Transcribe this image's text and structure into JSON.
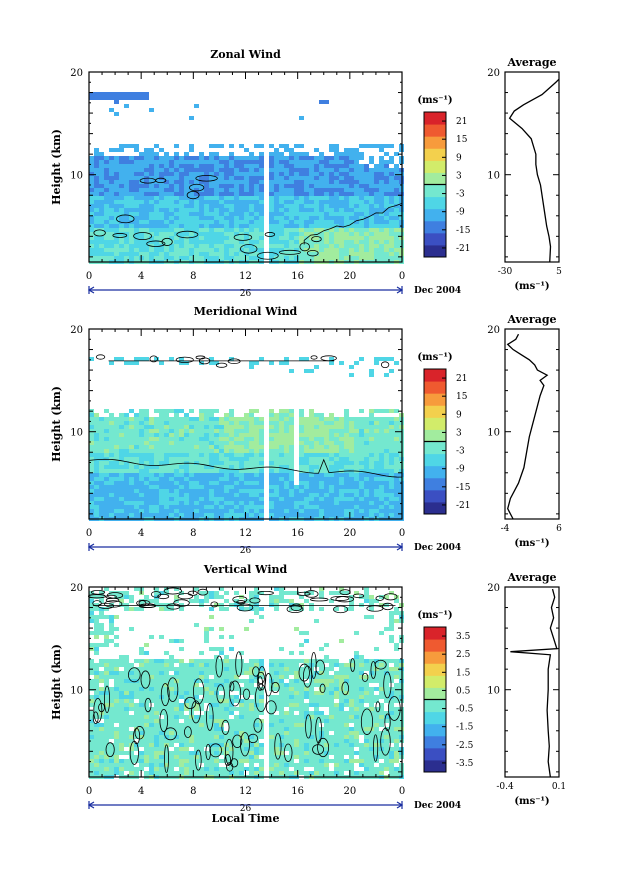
{
  "figure": {
    "date_label": "Dec 2004",
    "day_label": "26",
    "xlabel": "Local Time"
  },
  "colorscale": [
    "#2b2e8f",
    "#3b4fc2",
    "#3f7fe0",
    "#42b1ee",
    "#4fd6e6",
    "#74e8cf",
    "#a2ec9e",
    "#d2ec6a",
    "#f3d04d",
    "#f79b3c",
    "#ef5a30",
    "#d9232a"
  ],
  "chart_data": [
    {
      "type": "heatmap",
      "title": "Zonal Wind",
      "ylabel": "Height (km)",
      "xlim": [
        0,
        24
      ],
      "ylim": [
        1.5,
        20
      ],
      "x_ticks": [
        "0",
        "4",
        "8",
        "12",
        "16",
        "20",
        "0"
      ],
      "y_ticks": [
        "10",
        "20"
      ],
      "colorbar": {
        "unit": "(ms⁻¹)",
        "ticks": [
          "21",
          "15",
          "9",
          "3",
          "-3",
          "-9",
          "-15",
          "-21"
        ],
        "range": [
          -24,
          24
        ]
      },
      "profile": {
        "title": "Average",
        "xlim": [
          -30,
          5
        ],
        "x_ticks": [
          "-30",
          "5"
        ],
        "xlabel": "(ms⁻¹)",
        "y_ticks": [
          "10",
          "20"
        ],
        "points": [
          [
            -1,
            1.5
          ],
          [
            -0.5,
            3
          ],
          [
            -1.5,
            4
          ],
          [
            -3,
            5
          ],
          [
            -4,
            6
          ],
          [
            -5,
            7
          ],
          [
            -6,
            8
          ],
          [
            -7,
            9
          ],
          [
            -9,
            10
          ],
          [
            -10,
            11
          ],
          [
            -10,
            12
          ],
          [
            -12,
            13
          ],
          [
            -13,
            13.5
          ],
          [
            -19,
            14.5
          ],
          [
            -27,
            15.5
          ],
          [
            -24,
            16.2
          ],
          [
            -18,
            16.8
          ],
          [
            -12,
            17.3
          ],
          [
            -6,
            17.8
          ],
          [
            -3,
            18.2
          ],
          [
            0,
            18.6
          ],
          [
            3,
            19.0
          ],
          [
            5,
            19.3
          ]
        ]
      }
    },
    {
      "type": "heatmap",
      "title": "Meridional Wind",
      "ylabel": "Height (km)",
      "xlim": [
        0,
        24
      ],
      "ylim": [
        1.5,
        20
      ],
      "x_ticks": [
        "0",
        "4",
        "8",
        "12",
        "16",
        "20",
        "0"
      ],
      "y_ticks": [
        "10",
        "20"
      ],
      "colorbar": {
        "unit": "(ms⁻¹)",
        "ticks": [
          "21",
          "15",
          "9",
          "3",
          "-3",
          "-9",
          "-15",
          "-21"
        ],
        "range": [
          -24,
          24
        ]
      },
      "profile": {
        "title": "Average",
        "xlim": [
          -4,
          6
        ],
        "x_ticks": [
          "-4",
          "6"
        ],
        "xlabel": "(ms⁻¹)",
        "y_ticks": [
          "10",
          "20"
        ],
        "points": [
          [
            -2.5,
            1.5
          ],
          [
            -3.5,
            2.5
          ],
          [
            -3,
            3.5
          ],
          [
            -1.5,
            5
          ],
          [
            -0.5,
            6.5
          ],
          [
            0,
            8
          ],
          [
            0.5,
            9.5
          ],
          [
            1,
            10.5
          ],
          [
            1.5,
            11.5
          ],
          [
            2,
            12.5
          ],
          [
            2.5,
            13.5
          ],
          [
            3.2,
            14.5
          ],
          [
            2.5,
            15
          ],
          [
            3.8,
            15.5
          ],
          [
            2,
            16
          ],
          [
            1.5,
            16.5
          ],
          [
            0.5,
            17
          ],
          [
            -1,
            17.5
          ],
          [
            -2.5,
            18
          ],
          [
            -3.5,
            18.5
          ],
          [
            -2,
            19
          ],
          [
            -1.5,
            19.5
          ]
        ]
      }
    },
    {
      "type": "heatmap",
      "title": "Vertical Wind",
      "ylabel": "Height (km)",
      "xlim": [
        0,
        24
      ],
      "ylim": [
        1.5,
        20
      ],
      "x_ticks": [
        "0",
        "4",
        "8",
        "12",
        "16",
        "20",
        "0"
      ],
      "y_ticks": [
        "10",
        "20"
      ],
      "colorbar": {
        "unit": "(ms⁻¹)",
        "ticks": [
          "3.5",
          "2.5",
          "1.5",
          "0.5",
          "-0.5",
          "-1.5",
          "-2.5",
          "-3.5"
        ],
        "range": [
          -4,
          4
        ]
      },
      "profile": {
        "title": "Average",
        "xlim": [
          -0.4,
          0.1
        ],
        "x_ticks": [
          "-0.4",
          "0.1"
        ],
        "xlabel": "(ms⁻¹)",
        "y_ticks": [
          "10",
          "20"
        ],
        "points": [
          [
            0.02,
            1.5
          ],
          [
            0.0,
            3
          ],
          [
            0.01,
            4.5
          ],
          [
            0.0,
            6
          ],
          [
            -0.01,
            8
          ],
          [
            0.0,
            10
          ],
          [
            0.0,
            12
          ],
          [
            0.02,
            13.4
          ],
          [
            -0.35,
            13.7
          ],
          [
            0.08,
            14
          ],
          [
            0.05,
            15
          ],
          [
            0.02,
            16
          ],
          [
            0.05,
            17
          ],
          [
            0.03,
            18
          ],
          [
            0.06,
            19
          ],
          [
            0.04,
            19.8
          ]
        ]
      }
    }
  ]
}
